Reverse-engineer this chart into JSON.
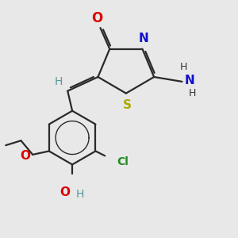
{
  "bg_color": "#e8e8e8",
  "bond_color": "#2a2a2a",
  "lw": 1.6,
  "dc": 0.008,
  "fs": 10,
  "colors": {
    "O": "#dd0000",
    "N": "#1111cc",
    "S": "#aaaa00",
    "Cl": "#228822",
    "H": "#559999",
    "C": "#2a2a2a",
    "NH": "#1111cc",
    "OH": "#dd0000",
    "OEt": "#dd0000"
  }
}
